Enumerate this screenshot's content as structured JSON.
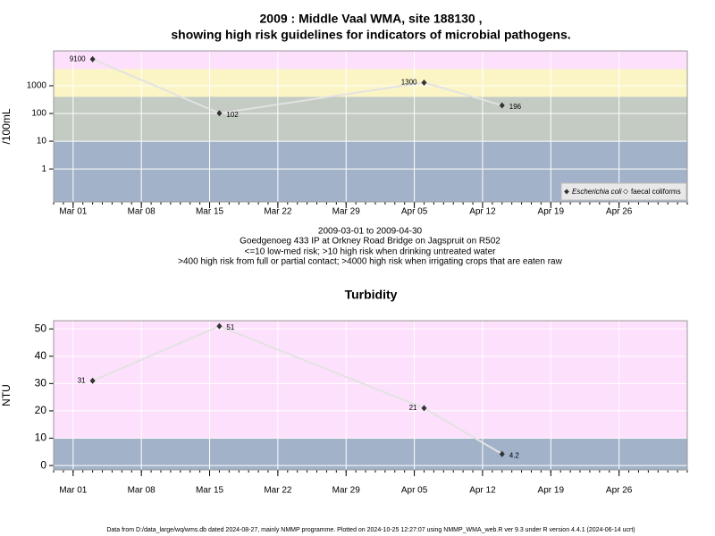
{
  "chart_data": [
    {
      "type": "line",
      "title": "2009 : Middle Vaal WMA, site 188130 ,",
      "title2": "showing high risk guidelines for indicators of microbial pathogens.",
      "subtitle": [
        "2009-03-01 to 2009-04-30",
        "Goedgenoeg 433 IP at Orkney Road Bridge on Jagspruit on R502",
        "<=10 low-med risk; >10 high risk when drinking untreated water",
        ">400 high risk from full or partial contact; >4000 high risk when irrigating crops that are eaten raw"
      ],
      "ylabel": "/100mL",
      "log_y": true,
      "grid": true,
      "legend": "bottom-right",
      "x": [
        "2009-03-03",
        "2009-03-16",
        "2009-04-06",
        "2009-04-14"
      ],
      "series": [
        {
          "name": "Escherichia coli",
          "color": "#333333",
          "values": [
            9100,
            102,
            1300,
            196
          ]
        },
        {
          "name": "faecal coliforms",
          "color": "#ffffff",
          "values": [
            null,
            null,
            null,
            null
          ]
        }
      ],
      "xlim": [
        "2009-02-27",
        "2009-05-03"
      ],
      "xticks": [
        {
          "value": "2009-03-01",
          "label": "Mar 01"
        },
        {
          "value": "2009-03-08",
          "label": "Mar 08"
        },
        {
          "value": "2009-03-15",
          "label": "Mar 15"
        },
        {
          "value": "2009-03-22",
          "label": "Mar 22"
        },
        {
          "value": "2009-03-29",
          "label": "Mar 29"
        },
        {
          "value": "2009-04-05",
          "label": "Apr 05"
        },
        {
          "value": "2009-04-12",
          "label": "Apr 12"
        },
        {
          "value": "2009-04-19",
          "label": "Apr 19"
        },
        {
          "value": "2009-04-26",
          "label": "Apr 26"
        }
      ],
      "ylim": [
        0.065,
        18000
      ],
      "yticks": [
        1,
        10,
        100,
        1000
      ],
      "bands": {
        "breaks": [
          10,
          400,
          4000
        ],
        "colors": [
          "#a2b2c8",
          "#c3cbc2",
          "#fbf5c6",
          "#fde0fc"
        ]
      }
    },
    {
      "type": "line",
      "title": "Turbidity",
      "ylabel": "NTU",
      "grid": true,
      "x": [
        "2009-03-03",
        "2009-03-16",
        "2009-04-06",
        "2009-04-14"
      ],
      "series": [
        {
          "name": "Turbidity",
          "color": "#333333",
          "values": [
            31,
            51,
            21,
            4.2
          ]
        }
      ],
      "xlim": [
        "2009-02-27",
        "2009-05-03"
      ],
      "xticks": [
        {
          "value": "2009-03-01",
          "label": "Mar 01"
        },
        {
          "value": "2009-03-08",
          "label": "Mar 08"
        },
        {
          "value": "2009-03-15",
          "label": "Mar 15"
        },
        {
          "value": "2009-03-22",
          "label": "Mar 22"
        },
        {
          "value": "2009-03-29",
          "label": "Mar 29"
        },
        {
          "value": "2009-04-05",
          "label": "Apr 05"
        },
        {
          "value": "2009-04-12",
          "label": "Apr 12"
        },
        {
          "value": "2009-04-19",
          "label": "Apr 19"
        },
        {
          "value": "2009-04-26",
          "label": "Apr 26"
        }
      ],
      "ylim": [
        -1.6,
        53
      ],
      "yticks": [
        0,
        10,
        20,
        30,
        40,
        50
      ],
      "bands": {
        "breaks": [
          10
        ],
        "colors": [
          "#a2b2c8",
          "#fde0fc"
        ]
      }
    }
  ],
  "footer": "Data from D:/data_large/wq/wms.db dated 2024-08-27, mainly NMMP programme. Plotted on 2024-10-25 12:27:07 using NMMP_WMA_web.R ver 9.3 under R version 4.4.1 (2024-06-14 ucrt)"
}
